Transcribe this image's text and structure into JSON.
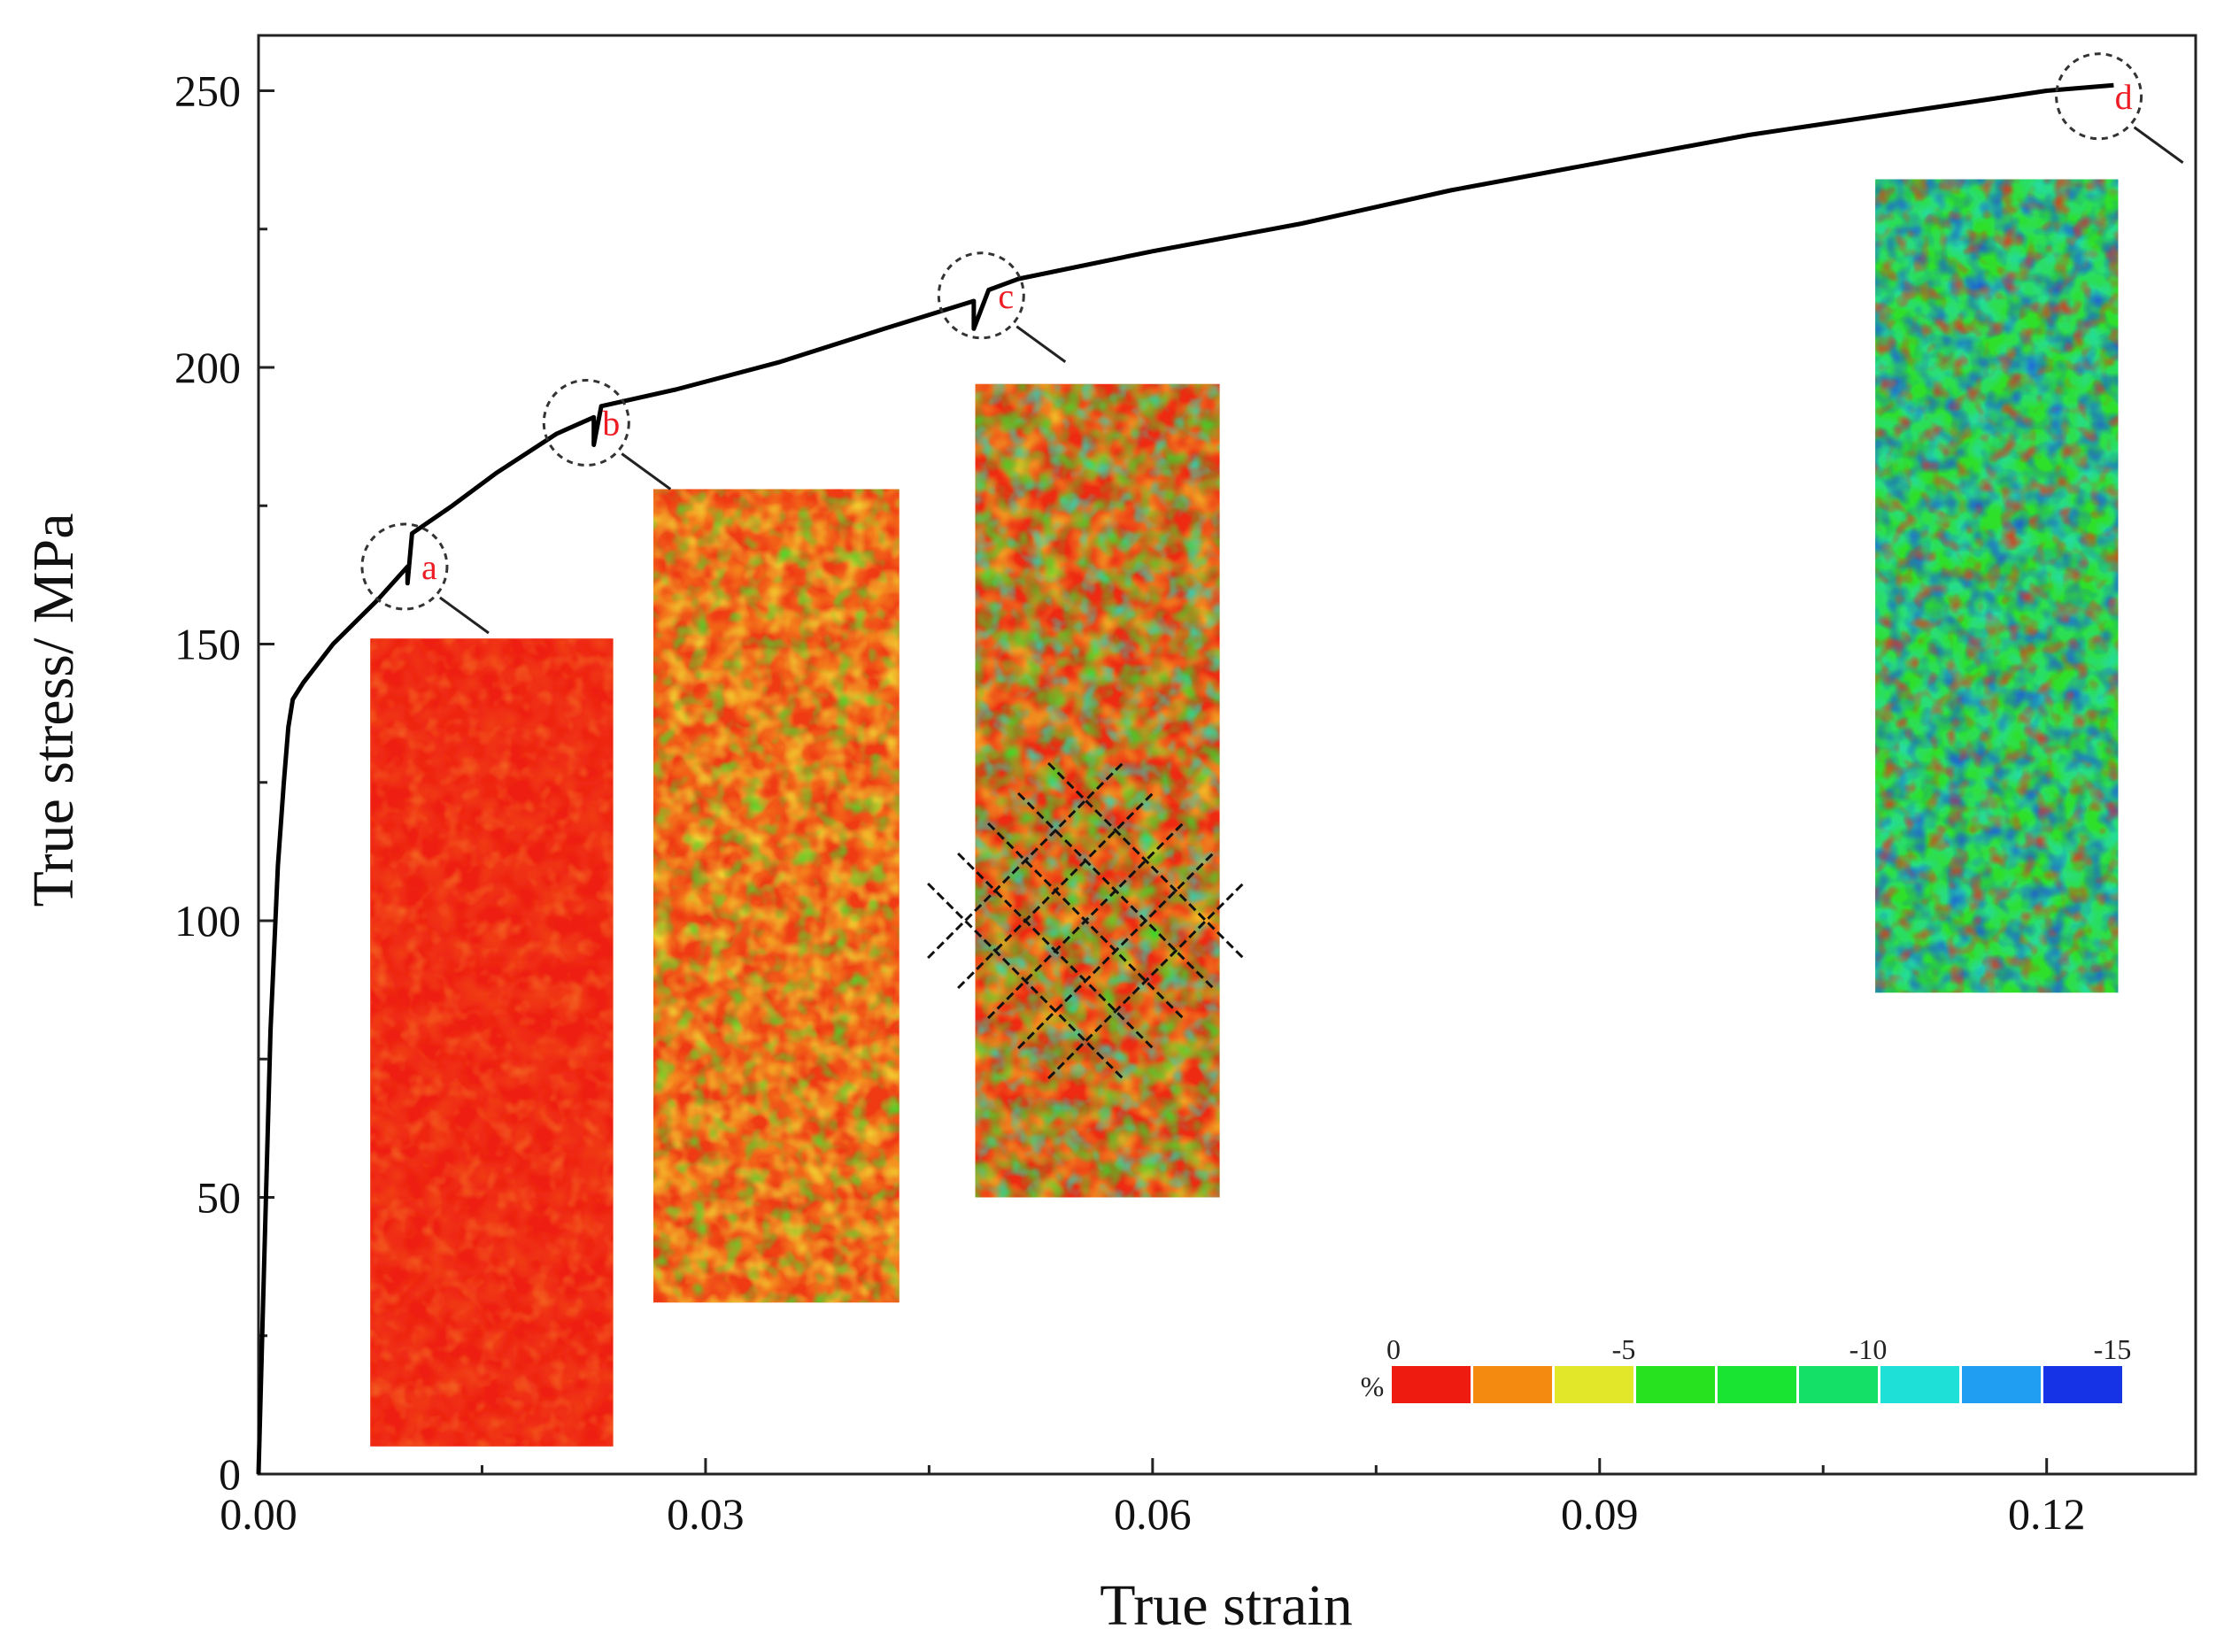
{
  "chart_data": {
    "type": "line",
    "xlabel": "True strain",
    "ylabel": "True stress/ MPa",
    "xlim": [
      0,
      0.13
    ],
    "ylim": [
      0,
      260
    ],
    "x_ticks": [
      "0.00",
      "0.03",
      "0.06",
      "0.09",
      "0.12"
    ],
    "x_tick_values": [
      0,
      0.03,
      0.06,
      0.09,
      0.12
    ],
    "y_ticks": [
      "0",
      "50",
      "100",
      "150",
      "200",
      "250"
    ],
    "y_tick_values": [
      0,
      50,
      100,
      150,
      200,
      250
    ],
    "series": [
      {
        "name": "True stress-strain curve",
        "color": "#000000",
        "points": [
          [
            0,
            0
          ],
          [
            0.0003,
            30
          ],
          [
            0.0008,
            80
          ],
          [
            0.0013,
            110
          ],
          [
            0.0017,
            125
          ],
          [
            0.002,
            135
          ],
          [
            0.0023,
            140
          ],
          [
            0.003,
            143
          ],
          [
            0.005,
            150
          ],
          [
            0.008,
            158
          ],
          [
            0.01,
            164
          ],
          [
            0.01,
            161
          ],
          [
            0.0103,
            170
          ],
          [
            0.013,
            175
          ],
          [
            0.016,
            181
          ],
          [
            0.02,
            188
          ],
          [
            0.0225,
            191
          ],
          [
            0.0225,
            186
          ],
          [
            0.023,
            193
          ],
          [
            0.028,
            196
          ],
          [
            0.035,
            201
          ],
          [
            0.042,
            207
          ],
          [
            0.048,
            212
          ],
          [
            0.048,
            207
          ],
          [
            0.049,
            214
          ],
          [
            0.051,
            216
          ],
          [
            0.06,
            221
          ],
          [
            0.07,
            226
          ],
          [
            0.08,
            232
          ],
          [
            0.09,
            237
          ],
          [
            0.1,
            242
          ],
          [
            0.11,
            246
          ],
          [
            0.12,
            250
          ],
          [
            0.1245,
            251
          ]
        ]
      }
    ],
    "markers": [
      {
        "label": "a",
        "x": 0.0098,
        "y": 164
      },
      {
        "label": "b",
        "x": 0.022,
        "y": 190
      },
      {
        "label": "c",
        "x": 0.0485,
        "y": 213
      },
      {
        "label": "d",
        "x": 0.1235,
        "y": 249
      }
    ],
    "strain_maps": [
      {
        "label": "a",
        "palette": "red",
        "x_range": [
          0.0075,
          0.0238
        ],
        "y_range": [
          5,
          151
        ]
      },
      {
        "label": "b",
        "palette": "redyellow",
        "x_range": [
          0.0265,
          0.043
        ],
        "y_range": [
          31,
          178
        ]
      },
      {
        "label": "c",
        "palette": "mixed",
        "x_range": [
          0.0481,
          0.0645
        ],
        "y_range": [
          50,
          197
        ]
      },
      {
        "label": "d",
        "palette": "cool",
        "x_range": [
          0.1085,
          0.1248
        ],
        "y_range": [
          87,
          234
        ]
      }
    ],
    "colorbar": {
      "unit": "%",
      "labels": [
        "0",
        "-5",
        "-10",
        "-15"
      ],
      "colors": [
        "#ee1c10",
        "#f58a10",
        "#e2e72a",
        "#27e21f",
        "#1ae432",
        "#14e068",
        "#1fe0d7",
        "#1f9ef2",
        "#1633e6"
      ]
    }
  }
}
